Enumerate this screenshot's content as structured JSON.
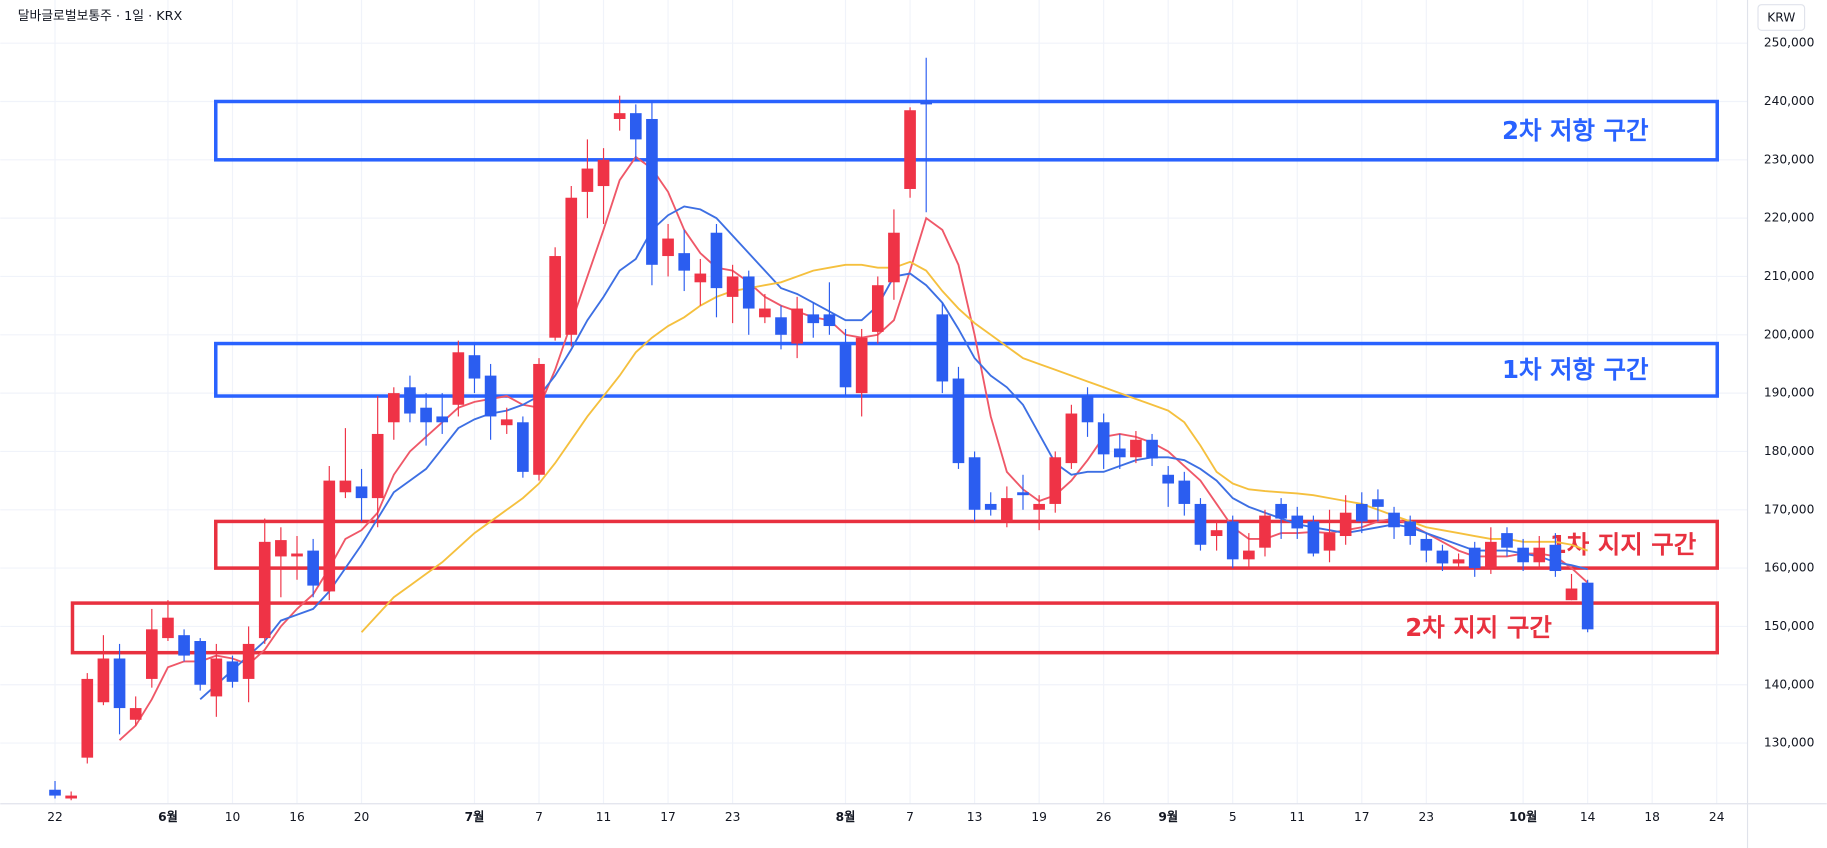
{
  "chart_data": {
    "type": "candlestick",
    "title": "달바글로벌보통주 · 1일 · KRX",
    "currency": "KRW",
    "up_color": "#ef3346",
    "down_color": "#2b5df0",
    "grid": true,
    "ylim": [
      119600,
      257400
    ],
    "yticks": [
      {
        "value": 130000,
        "label": "130,000"
      },
      {
        "value": 140000,
        "label": "140,000"
      },
      {
        "value": 150000,
        "label": "150,000"
      },
      {
        "value": 160000,
        "label": "160,000"
      },
      {
        "value": 170000,
        "label": "170,000"
      },
      {
        "value": 180000,
        "label": "180,000"
      },
      {
        "value": 190000,
        "label": "190,000"
      },
      {
        "value": 200000,
        "label": "200,000"
      },
      {
        "value": 210000,
        "label": "210,000"
      },
      {
        "value": 220000,
        "label": "220,000"
      },
      {
        "value": 230000,
        "label": "230,000"
      },
      {
        "value": 240000,
        "label": "240,000"
      },
      {
        "value": 250000,
        "label": "250,000"
      }
    ],
    "categories": [
      "22",
      null,
      null,
      null,
      null,
      null,
      null,
      "6월",
      null,
      null,
      null,
      "10",
      null,
      null,
      null,
      "16",
      null,
      null,
      null,
      "20",
      null,
      null,
      null,
      null,
      null,
      null,
      "7월",
      null,
      null,
      null,
      "7",
      null,
      null,
      null,
      "11",
      null,
      null,
      null,
      "17",
      null,
      null,
      null,
      "23",
      null,
      null,
      null,
      null,
      null,
      null,
      "8월",
      null,
      null,
      null,
      "7",
      null,
      null,
      null,
      "13",
      null,
      null,
      null,
      "19",
      null,
      null,
      null,
      "26",
      null,
      null,
      null,
      "9월",
      null,
      null,
      null,
      "5",
      null,
      null,
      null,
      "11",
      null,
      null,
      null,
      "17",
      null,
      null,
      null,
      "23",
      null,
      null,
      null,
      null,
      null,
      "10월",
      null,
      null,
      null,
      "14",
      null,
      null,
      null,
      "18",
      null,
      null,
      null,
      "24"
    ],
    "open": [
      122000,
      120500,
      127500,
      137000,
      144500,
      134000,
      141000,
      148000,
      148500,
      147500,
      138000,
      144000,
      141000,
      148000,
      162000,
      162000,
      163000,
      156000,
      173000,
      174000,
      172000,
      185000,
      191000,
      187500,
      186000,
      188000,
      196500,
      193000,
      184500,
      185000,
      176000,
      199500,
      200000,
      224500,
      225500,
      237000,
      238000,
      237000,
      213500,
      214000,
      209000,
      217500,
      206500,
      210000,
      203000,
      203000,
      198500,
      203500,
      203500,
      198500,
      190000,
      200500,
      209000,
      225000,
      240000,
      203500,
      192500,
      179000,
      171000,
      168000,
      173000,
      170000,
      171000,
      178000,
      189500,
      185000,
      180500,
      179000,
      182000,
      176000,
      175000,
      171000,
      165500,
      168000,
      161500,
      163500,
      171000,
      169000,
      168000,
      163000,
      165500,
      171000,
      171800,
      169500,
      168000,
      165000,
      163000,
      160800,
      163500,
      160000,
      166000,
      163500,
      161000,
      164000,
      154500,
      157500,
      null,
      null,
      null,
      null,
      null,
      null,
      null,
      null
    ],
    "high": [
      123500,
      121700,
      142000,
      148500,
      147000,
      138000,
      153000,
      154500,
      149500,
      148000,
      147000,
      145000,
      150000,
      168500,
      167000,
      165500,
      165000,
      177500,
      184000,
      177000,
      189500,
      191000,
      193000,
      190000,
      190000,
      199000,
      198500,
      195000,
      187500,
      186000,
      196000,
      215000,
      225500,
      233500,
      232000,
      241000,
      239500,
      240000,
      219000,
      218000,
      213000,
      219000,
      212000,
      211000,
      207000,
      205000,
      206500,
      205500,
      209000,
      201000,
      201000,
      210000,
      221500,
      239000,
      247500,
      205500,
      194500,
      180000,
      173000,
      174000,
      176000,
      172500,
      180000,
      188000,
      191000,
      186500,
      183000,
      183500,
      183000,
      177500,
      176500,
      172000,
      168000,
      169000,
      166000,
      170000,
      172000,
      170500,
      169000,
      170000,
      172500,
      173000,
      173500,
      170500,
      169000,
      166000,
      164000,
      162500,
      164500,
      167000,
      167000,
      165000,
      165500,
      166000,
      159000,
      158000,
      null,
      null,
      null,
      null,
      null,
      null,
      null,
      null
    ],
    "low": [
      120500,
      120200,
      126500,
      136500,
      131500,
      133000,
      139500,
      147500,
      144000,
      139000,
      134500,
      139500,
      137000,
      147000,
      155000,
      158000,
      155000,
      154500,
      172000,
      168000,
      167000,
      182000,
      185000,
      181000,
      183000,
      186000,
      190000,
      182000,
      183000,
      175500,
      175000,
      199000,
      198000,
      220000,
      219000,
      235000,
      230000,
      208500,
      210000,
      207500,
      205000,
      203000,
      202000,
      200000,
      202000,
      197500,
      196000,
      199500,
      200000,
      189500,
      186000,
      198500,
      206000,
      223500,
      221000,
      190000,
      177000,
      168000,
      169000,
      167000,
      170000,
      166500,
      169500,
      177000,
      182500,
      177000,
      177000,
      178000,
      177500,
      170500,
      169000,
      163000,
      163000,
      160000,
      160000,
      162000,
      165000,
      165000,
      162000,
      161000,
      164000,
      166000,
      168000,
      165000,
      164000,
      161000,
      159500,
      160000,
      158500,
      159000,
      162000,
      159500,
      160000,
      158500,
      154500,
      149000,
      null,
      null,
      null,
      null,
      null,
      null,
      null,
      null
    ],
    "close": [
      121000,
      121000,
      141000,
      144500,
      136000,
      136000,
      149500,
      151500,
      145000,
      140000,
      144500,
      140500,
      147000,
      164500,
      164800,
      162500,
      157000,
      175000,
      175000,
      172000,
      183000,
      190000,
      186500,
      185000,
      185000,
      197000,
      192500,
      186000,
      185500,
      176500,
      195000,
      213500,
      223500,
      228500,
      230000,
      238000,
      233500,
      212000,
      216500,
      211000,
      210500,
      208000,
      210000,
      204500,
      204500,
      200000,
      204500,
      202000,
      201500,
      191000,
      199500,
      208500,
      217500,
      238500,
      239500,
      192000,
      178000,
      170000,
      170000,
      172000,
      172500,
      171000,
      179000,
      186500,
      185000,
      179500,
      179000,
      182000,
      178800,
      174500,
      171000,
      164000,
      166500,
      161500,
      163000,
      169000,
      168500,
      166800,
      162500,
      166000,
      169500,
      168000,
      170500,
      167000,
      165500,
      163000,
      160800,
      161500,
      160000,
      164500,
      163500,
      161000,
      163500,
      159500,
      156500,
      149500,
      null,
      null,
      null,
      null,
      null,
      null,
      null,
      null
    ],
    "lines": [
      {
        "color": "#ef5868",
        "values": [
          null,
          null,
          null,
          null,
          130500,
          133000,
          137500,
          143000,
          144000,
          144000,
          145000,
          144500,
          143500,
          146000,
          150000,
          153000,
          155500,
          160000,
          165000,
          166500,
          169500,
          176000,
          180000,
          182500,
          185000,
          187500,
          188500,
          189000,
          189500,
          188000,
          187500,
          194000,
          202000,
          210000,
          218000,
          226500,
          230500,
          228500,
          224500,
          218000,
          214000,
          211500,
          211000,
          209000,
          206500,
          205000,
          204000,
          203000,
          202500,
          200000,
          199500,
          200000,
          202500,
          211000,
          220000,
          218000,
          212000,
          200000,
          186000,
          176500,
          173500,
          171500,
          172500,
          175000,
          178500,
          182500,
          183000,
          182500,
          181500,
          180000,
          177500,
          175000,
          171000,
          167000,
          165000,
          165000,
          166000,
          166000,
          166200,
          166000,
          166500,
          167000,
          168000,
          168500,
          167500,
          166000,
          164500,
          163000,
          162000,
          162000,
          162000,
          162500,
          162500,
          162000,
          160000,
          157500,
          null,
          null,
          null,
          null,
          null,
          null,
          null,
          null
        ]
      },
      {
        "color": "#3d6fe3",
        "values": [
          null,
          null,
          null,
          null,
          null,
          null,
          null,
          null,
          null,
          137500,
          140000,
          142500,
          145000,
          147500,
          151000,
          152000,
          153000,
          156000,
          160000,
          164000,
          168500,
          173000,
          175000,
          177000,
          180500,
          184000,
          185500,
          186500,
          187000,
          188000,
          189500,
          193000,
          197500,
          202500,
          206500,
          211000,
          213000,
          218000,
          220500,
          222000,
          221500,
          220000,
          217000,
          214000,
          211000,
          208000,
          207000,
          205500,
          204000,
          202500,
          202500,
          205000,
          210000,
          210500,
          208500,
          205500,
          201000,
          196000,
          193000,
          191000,
          188000,
          183000,
          178000,
          176000,
          176500,
          176500,
          177500,
          178500,
          179000,
          179000,
          178500,
          177000,
          175000,
          172000,
          170500,
          169500,
          168500,
          167500,
          167000,
          166500,
          166000,
          166500,
          167000,
          167500,
          167000,
          166000,
          165000,
          164000,
          163000,
          163000,
          163000,
          162500,
          162000,
          161000,
          160500,
          159800,
          null,
          null,
          null,
          null,
          null,
          null,
          null,
          null
        ]
      },
      {
        "color": "#f5c03e",
        "values": [
          null,
          null,
          null,
          null,
          null,
          null,
          null,
          null,
          null,
          null,
          null,
          null,
          null,
          null,
          null,
          null,
          null,
          null,
          null,
          149000,
          152000,
          155000,
          157000,
          159000,
          161000,
          163500,
          166000,
          168000,
          170000,
          172000,
          174500,
          178000,
          182000,
          186000,
          189500,
          193000,
          197000,
          199500,
          201500,
          203000,
          205000,
          206500,
          207500,
          208000,
          208500,
          209000,
          210000,
          211000,
          211500,
          212000,
          212000,
          211500,
          211500,
          212500,
          211000,
          207500,
          204500,
          202000,
          200000,
          198000,
          196000,
          195000,
          194000,
          193000,
          192000,
          191000,
          190000,
          189000,
          188000,
          187000,
          185000,
          181000,
          176500,
          174500,
          173500,
          173200,
          173000,
          172800,
          172500,
          172000,
          171500,
          171000,
          170000,
          169000,
          168000,
          167000,
          166500,
          166000,
          165500,
          165000,
          165000,
          164500,
          164500,
          164500,
          164000,
          163000,
          null,
          null,
          null,
          null,
          null,
          null,
          null,
          null
        ]
      }
    ],
    "zones": [
      {
        "label": "2차 저항 구간",
        "color": "#2962ff",
        "low": 230000,
        "high": 240000
      },
      {
        "label": "1차 저항 구간",
        "color": "#2962ff",
        "low": 189500,
        "high": 198500
      },
      {
        "label": "1차 지지 구간",
        "color": "#e8313f",
        "low": 160000,
        "high": 168000
      },
      {
        "label": "2차 지지 구간",
        "color": "#e8313f",
        "low": 145500,
        "high": 154000
      }
    ]
  }
}
